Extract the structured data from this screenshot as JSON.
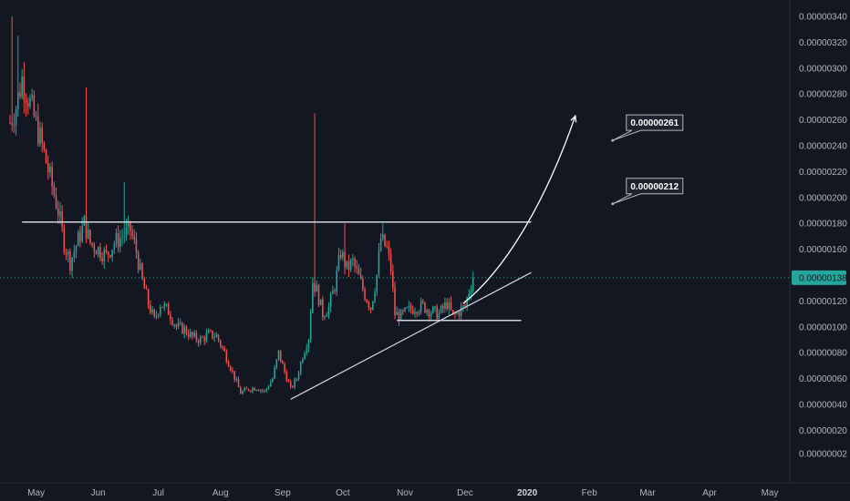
{
  "chart_data": {
    "type": "candlestick",
    "title": "",
    "xlabel": "",
    "ylabel": "",
    "ylim": [
      0.0,
      3.5e-06
    ],
    "y_ticks": [
      "0.00000340",
      "0.00000320",
      "0.00000300",
      "0.00000280",
      "0.00000260",
      "0.00000240",
      "0.00000220",
      "0.00000200",
      "0.00000180",
      "0.00000160",
      "0.00000120",
      "0.00000100",
      "0.00000080",
      "0.00000060",
      "0.00000040",
      "0.00000020",
      "0.00000002"
    ],
    "x_ticks": [
      {
        "label": "May",
        "day": 13,
        "bold": false
      },
      {
        "label": "Jun",
        "day": 44,
        "bold": false
      },
      {
        "label": "Jul",
        "day": 74,
        "bold": false
      },
      {
        "label": "Aug",
        "day": 105,
        "bold": false
      },
      {
        "label": "Sep",
        "day": 136,
        "bold": false
      },
      {
        "label": "Oct",
        "day": 166,
        "bold": false
      },
      {
        "label": "Nov",
        "day": 197,
        "bold": false
      },
      {
        "label": "Dec",
        "day": 227,
        "bold": false
      },
      {
        "label": "2020",
        "day": 258,
        "bold": true
      },
      {
        "label": "Feb",
        "day": 289,
        "bold": false
      },
      {
        "label": "Mar",
        "day": 318,
        "bold": false
      },
      {
        "label": "Apr",
        "day": 349,
        "bold": false
      },
      {
        "label": "May",
        "day": 379,
        "bold": false
      }
    ],
    "x_range_days": [
      -5,
      389
    ],
    "last_candle_day": 231,
    "current_price": {
      "label": "0.00000138",
      "value": 1.38e-06
    },
    "anchors": [
      [
        0,
        2.58e-06
      ],
      [
        3,
        2.7e-06
      ],
      [
        6,
        2.92e-06
      ],
      [
        9,
        2.78e-06
      ],
      [
        12,
        2.62e-06
      ],
      [
        16,
        2.4e-06
      ],
      [
        20,
        2.15e-06
      ],
      [
        24,
        1.9e-06
      ],
      [
        27,
        1.65e-06
      ],
      [
        30,
        1.5e-06
      ],
      [
        33,
        1.63e-06
      ],
      [
        37,
        1.8e-06
      ],
      [
        40,
        1.65e-06
      ],
      [
        44,
        1.6e-06
      ],
      [
        48,
        1.55e-06
      ],
      [
        52,
        1.65e-06
      ],
      [
        56,
        1.7e-06
      ],
      [
        60,
        1.75e-06
      ],
      [
        63,
        1.58e-06
      ],
      [
        66,
        1.35e-06
      ],
      [
        69,
        1.18e-06
      ],
      [
        72,
        1.05e-06
      ],
      [
        75,
        1.18e-06
      ],
      [
        79,
        1.12e-06
      ],
      [
        83,
        1e-06
      ],
      [
        87,
        9.8e-07
      ],
      [
        91,
        9.2e-07
      ],
      [
        95,
        9e-07
      ],
      [
        99,
        9.4e-07
      ],
      [
        103,
        9.3e-07
      ],
      [
        107,
        8e-07
      ],
      [
        111,
        6.5e-07
      ],
      [
        115,
        4.9e-07
      ],
      [
        119,
        5.2e-07
      ],
      [
        123,
        5.3e-07
      ],
      [
        127,
        5e-07
      ],
      [
        131,
        6e-07
      ],
      [
        134,
        8e-07
      ],
      [
        137,
        6.5e-07
      ],
      [
        140,
        5.2e-07
      ],
      [
        143,
        6e-07
      ],
      [
        146,
        7.8e-07
      ],
      [
        149,
        9.2e-07
      ],
      [
        151,
        1.35e-06
      ],
      [
        153,
        1.28e-06
      ],
      [
        156,
        1.1e-06
      ],
      [
        159,
        1.15e-06
      ],
      [
        162,
        1.32e-06
      ],
      [
        165,
        1.58e-06
      ],
      [
        168,
        1.45e-06
      ],
      [
        171,
        1.5e-06
      ],
      [
        174,
        1.38e-06
      ],
      [
        177,
        1.25e-06
      ],
      [
        180,
        1.15e-06
      ],
      [
        183,
        1.4e-06
      ],
      [
        185,
        1.68e-06
      ],
      [
        188,
        1.6e-06
      ],
      [
        190,
        1.45e-06
      ],
      [
        192,
        1.1e-06
      ],
      [
        195,
        1.08e-06
      ],
      [
        198,
        1.12e-06
      ],
      [
        202,
        1.15e-06
      ],
      [
        206,
        1.16e-06
      ],
      [
        210,
        1.12e-06
      ],
      [
        214,
        1.1e-06
      ],
      [
        218,
        1.18e-06
      ],
      [
        221,
        1.08e-06
      ],
      [
        224,
        1.12e-06
      ],
      [
        227,
        1.16e-06
      ],
      [
        229,
        1.28e-06
      ],
      [
        231,
        1.38e-06
      ]
    ],
    "spikes": [
      {
        "day": 1,
        "value": 3.4e-06
      },
      {
        "day": 4,
        "value": 3.25e-06
      },
      {
        "day": 38,
        "value": 2.85e-06
      },
      {
        "day": 57,
        "value": 2.12e-06
      },
      {
        "day": 152,
        "value": 2.65e-06
      },
      {
        "day": 167,
        "value": 1.8e-06
      },
      {
        "day": 186,
        "value": 1.8e-06
      }
    ],
    "annotations": {
      "resistance": {
        "from_day": 6,
        "to_day": 260,
        "value": 1.81e-06
      },
      "support": {
        "from_day": 193,
        "to_day": 255,
        "value": 1.05e-06
      },
      "trendline": {
        "from": [
          140,
          4.4e-07
        ],
        "to": [
          260,
          1.42e-06
        ]
      },
      "projection": {
        "points": [
          [
            226,
            1.18e-06
          ],
          [
            248,
            1.45e-06
          ],
          [
            268,
            2e-06
          ],
          [
            282,
            2.63e-06
          ]
        ]
      },
      "callouts": [
        {
          "label": "0.00000261",
          "value": 2.61e-06,
          "day": 302
        },
        {
          "label": "0.00000212",
          "value": 2.12e-06,
          "day": 302
        }
      ]
    },
    "colors": {
      "up": "#26a69a",
      "down": "#ef5350",
      "background": "#131722",
      "line": "#d1d4dc",
      "price_line": "#26a69a"
    }
  }
}
